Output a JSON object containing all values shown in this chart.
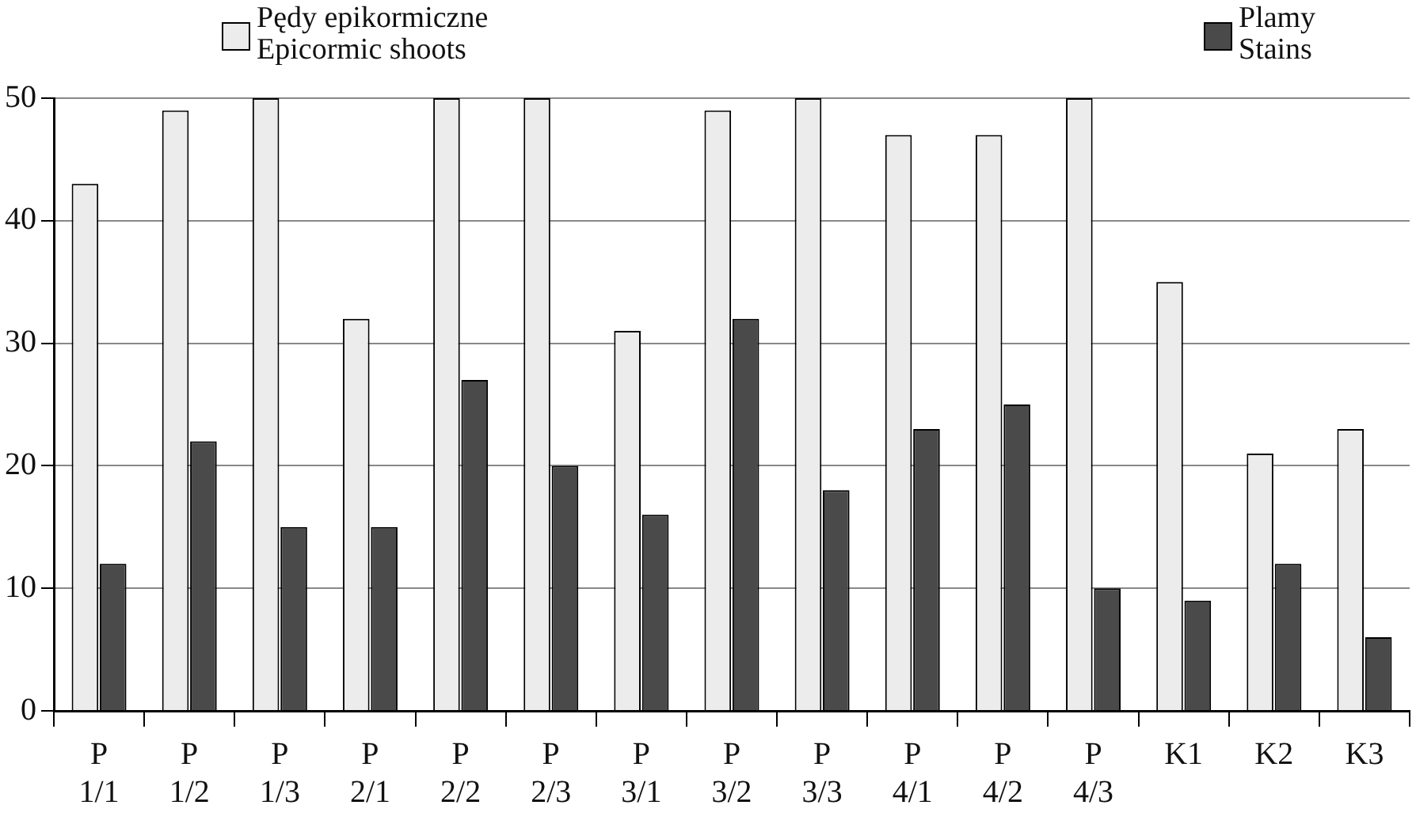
{
  "chart_data": {
    "type": "bar",
    "categories": [
      "P 1/1",
      "P 1/2",
      "P 1/3",
      "P 2/1",
      "P 2/2",
      "P 2/3",
      "P 3/1",
      "P 3/2",
      "P 3/3",
      "P 4/1",
      "P 4/2",
      "P 4/3",
      "K1",
      "K2",
      "K3"
    ],
    "series": [
      {
        "name": "Pędy epikormiczne\nEpicormic shoots",
        "color": "#ececec",
        "values": [
          43,
          49,
          50,
          32,
          50,
          50,
          31,
          49,
          50,
          47,
          47,
          50,
          35,
          21,
          23
        ]
      },
      {
        "name": "Plamy\nStains",
        "color": "#4a4a4a",
        "values": [
          12,
          22,
          15,
          15,
          27,
          20,
          16,
          32,
          18,
          23,
          25,
          10,
          9,
          12,
          6
        ]
      }
    ],
    "ylim": [
      0,
      50
    ],
    "yticks": [
      0,
      10,
      20,
      30,
      40,
      50
    ],
    "grid": "y",
    "legend": "top"
  }
}
